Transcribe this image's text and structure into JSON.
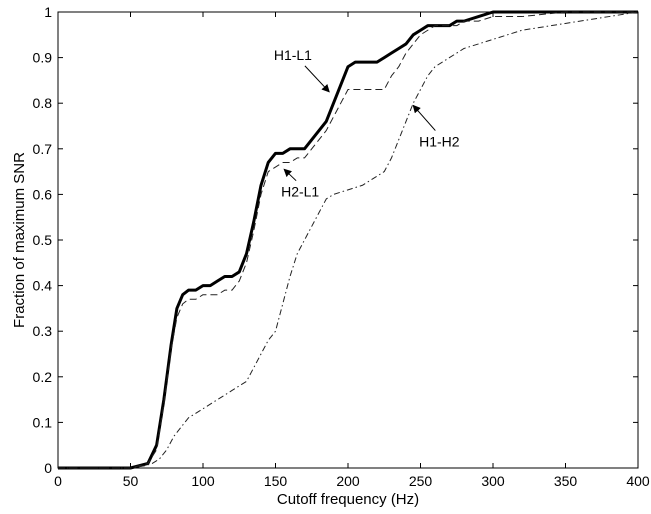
{
  "chart_data": {
    "type": "line",
    "title": "",
    "xlabel": "Cutoff frequency (Hz)",
    "ylabel": "Fraction of maximum SNR",
    "xlim": [
      0,
      400
    ],
    "ylim": [
      0,
      1
    ],
    "xticks": [
      0,
      50,
      100,
      150,
      200,
      250,
      300,
      350,
      400
    ],
    "yticks": [
      0,
      0.1,
      0.2,
      0.3,
      0.4,
      0.5,
      0.6,
      0.7,
      0.8,
      0.9,
      1
    ],
    "xtick_labels": [
      "0",
      "50",
      "100",
      "150",
      "200",
      "250",
      "300",
      "350",
      "400"
    ],
    "ytick_labels": [
      "0",
      "0.1",
      "0.2",
      "0.3",
      "0.4",
      "0.5",
      "0.6",
      "0.7",
      "0.8",
      "0.9",
      "1"
    ],
    "grid": false,
    "series": [
      {
        "name": "H1-L1",
        "style": "solid-thick",
        "color": "#000000",
        "x": [
          0,
          50,
          62,
          68,
          73,
          78,
          82,
          86,
          90,
          95,
          100,
          105,
          110,
          115,
          120,
          125,
          130,
          135,
          140,
          145,
          150,
          155,
          160,
          165,
          170,
          175,
          180,
          185,
          190,
          195,
          200,
          205,
          210,
          215,
          220,
          225,
          230,
          235,
          240,
          245,
          250,
          255,
          260,
          265,
          270,
          275,
          280,
          290,
          300,
          320,
          350,
          400
        ],
        "y": [
          0,
          0,
          0.01,
          0.05,
          0.15,
          0.27,
          0.35,
          0.38,
          0.39,
          0.39,
          0.4,
          0.4,
          0.41,
          0.42,
          0.42,
          0.43,
          0.47,
          0.54,
          0.62,
          0.67,
          0.69,
          0.69,
          0.7,
          0.7,
          0.7,
          0.72,
          0.74,
          0.76,
          0.8,
          0.84,
          0.88,
          0.89,
          0.89,
          0.89,
          0.89,
          0.9,
          0.91,
          0.92,
          0.93,
          0.95,
          0.96,
          0.97,
          0.97,
          0.97,
          0.97,
          0.98,
          0.98,
          0.99,
          1,
          1,
          1,
          1
        ]
      },
      {
        "name": "H2-L1",
        "style": "dashed",
        "color": "#222222",
        "x": [
          0,
          50,
          62,
          68,
          73,
          78,
          82,
          86,
          90,
          95,
          100,
          105,
          110,
          115,
          120,
          125,
          130,
          135,
          140,
          145,
          150,
          155,
          160,
          165,
          170,
          175,
          180,
          185,
          190,
          195,
          200,
          205,
          210,
          215,
          220,
          225,
          230,
          235,
          240,
          245,
          250,
          255,
          260,
          265,
          270,
          275,
          280,
          290,
          300,
          320,
          350,
          400
        ],
        "y": [
          0,
          0,
          0.01,
          0.04,
          0.14,
          0.26,
          0.33,
          0.36,
          0.37,
          0.37,
          0.38,
          0.38,
          0.38,
          0.39,
          0.39,
          0.41,
          0.45,
          0.52,
          0.6,
          0.65,
          0.66,
          0.67,
          0.67,
          0.68,
          0.68,
          0.7,
          0.72,
          0.74,
          0.77,
          0.8,
          0.83,
          0.83,
          0.83,
          0.83,
          0.83,
          0.83,
          0.86,
          0.88,
          0.91,
          0.93,
          0.95,
          0.96,
          0.97,
          0.97,
          0.97,
          0.97,
          0.98,
          0.98,
          0.99,
          0.99,
          1,
          1
        ]
      },
      {
        "name": "H1-H2",
        "style": "dash-dot",
        "color": "#222222",
        "x": [
          0,
          50,
          60,
          65,
          70,
          75,
          80,
          85,
          90,
          95,
          100,
          110,
          120,
          130,
          135,
          140,
          145,
          150,
          155,
          160,
          165,
          170,
          175,
          180,
          185,
          190,
          200,
          210,
          220,
          225,
          230,
          235,
          240,
          245,
          250,
          255,
          260,
          270,
          280,
          290,
          300,
          320,
          340,
          360,
          380,
          400
        ],
        "y": [
          0,
          0,
          0.005,
          0.01,
          0.02,
          0.04,
          0.07,
          0.09,
          0.11,
          0.12,
          0.13,
          0.15,
          0.17,
          0.19,
          0.22,
          0.25,
          0.28,
          0.3,
          0.36,
          0.42,
          0.47,
          0.5,
          0.53,
          0.56,
          0.59,
          0.6,
          0.61,
          0.62,
          0.64,
          0.65,
          0.68,
          0.72,
          0.76,
          0.8,
          0.83,
          0.86,
          0.88,
          0.9,
          0.92,
          0.93,
          0.94,
          0.96,
          0.97,
          0.98,
          0.99,
          1
        ]
      }
    ],
    "annotations": [
      {
        "text": "H1-L1",
        "x": 162,
        "y": 0.895,
        "arrow_to": [
          187,
          0.825
        ]
      },
      {
        "text": "H2-L1",
        "x": 167,
        "y": 0.595,
        "arrow_to": [
          156,
          0.655
        ]
      },
      {
        "text": "H1-H2",
        "x": 263,
        "y": 0.705,
        "arrow_to": [
          245,
          0.795
        ]
      }
    ]
  }
}
